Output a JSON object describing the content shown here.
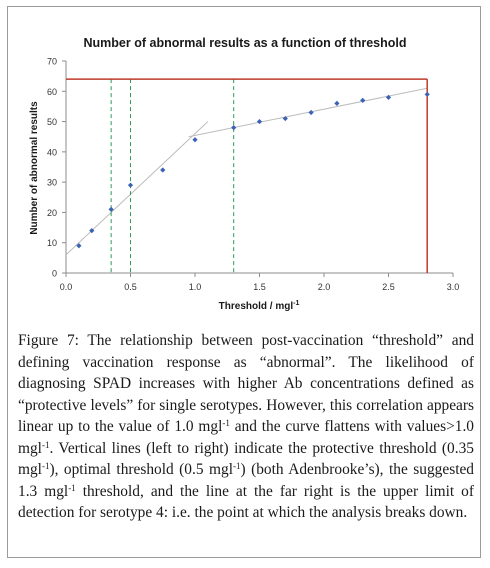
{
  "chart_data": {
    "type": "scatter",
    "title": "Number of abnormal results as a function of threshold",
    "xlabel": "Threshold / mgl",
    "xlabel_sup": "-1",
    "ylabel": "Number of abnormal results",
    "xlim": [
      0,
      3.0
    ],
    "ylim": [
      0,
      70
    ],
    "xticks": [
      "0.0",
      "0.5",
      "1.0",
      "1.5",
      "2.0",
      "2.5",
      "3.0"
    ],
    "yticks": [
      "0",
      "10",
      "20",
      "30",
      "40",
      "50",
      "60",
      "70"
    ],
    "grid": false,
    "legend": "none",
    "points": [
      {
        "x": 0.1,
        "y": 9
      },
      {
        "x": 0.2,
        "y": 14
      },
      {
        "x": 0.35,
        "y": 21
      },
      {
        "x": 0.5,
        "y": 29
      },
      {
        "x": 0.75,
        "y": 34
      },
      {
        "x": 1.0,
        "y": 44
      },
      {
        "x": 1.3,
        "y": 48
      },
      {
        "x": 1.5,
        "y": 50
      },
      {
        "x": 1.7,
        "y": 51
      },
      {
        "x": 1.9,
        "y": 53
      },
      {
        "x": 2.1,
        "y": 56
      },
      {
        "x": 2.3,
        "y": 57
      },
      {
        "x": 2.5,
        "y": 58
      },
      {
        "x": 2.8,
        "y": 59
      }
    ],
    "trend_lines": [
      {
        "x": [
          0.0,
          1.1
        ],
        "y": [
          6,
          50
        ]
      },
      {
        "x": [
          0.95,
          2.8
        ],
        "y": [
          45,
          61
        ]
      }
    ],
    "vertical_lines": [
      0.35,
      0.5,
      1.3
    ],
    "limit_line": {
      "x": 2.8,
      "y": 64
    },
    "colors": {
      "points": "#3a62b5",
      "trend": "#bcbcbc",
      "threshold": "#2e9b5a",
      "limit": "#c0392b",
      "axis": "#8c8c8c"
    }
  },
  "caption": {
    "label": "Figure 7:",
    "segments": [
      {
        "t": " The relationship between post-vaccination “threshold” and defining vaccination response as “abnormal”. The likelihood of diagnosing SPAD increases with higher Ab concentrations defined as “protective levels” for single serotypes. However, this correlation appears linear up to the value of 1.0 mgl"
      },
      {
        "sup": "-1"
      },
      {
        "t": " and the curve flattens with values>1.0 mgl"
      },
      {
        "sup": "-1"
      },
      {
        "t": ". Vertical lines (left to right) indicate the protective threshold (0.35 mgl"
      },
      {
        "sup": "-1"
      },
      {
        "t": "), optimal threshold (0.5 mgl"
      },
      {
        "sup": "-1"
      },
      {
        "t": ") (both Adenbrooke’s), the suggested 1.3 mgl"
      },
      {
        "sup": "-1"
      },
      {
        "t": " threshold, and the line at the far right is the upper limit of detection for serotype 4: i.e. the point at which the analysis breaks down."
      }
    ]
  }
}
